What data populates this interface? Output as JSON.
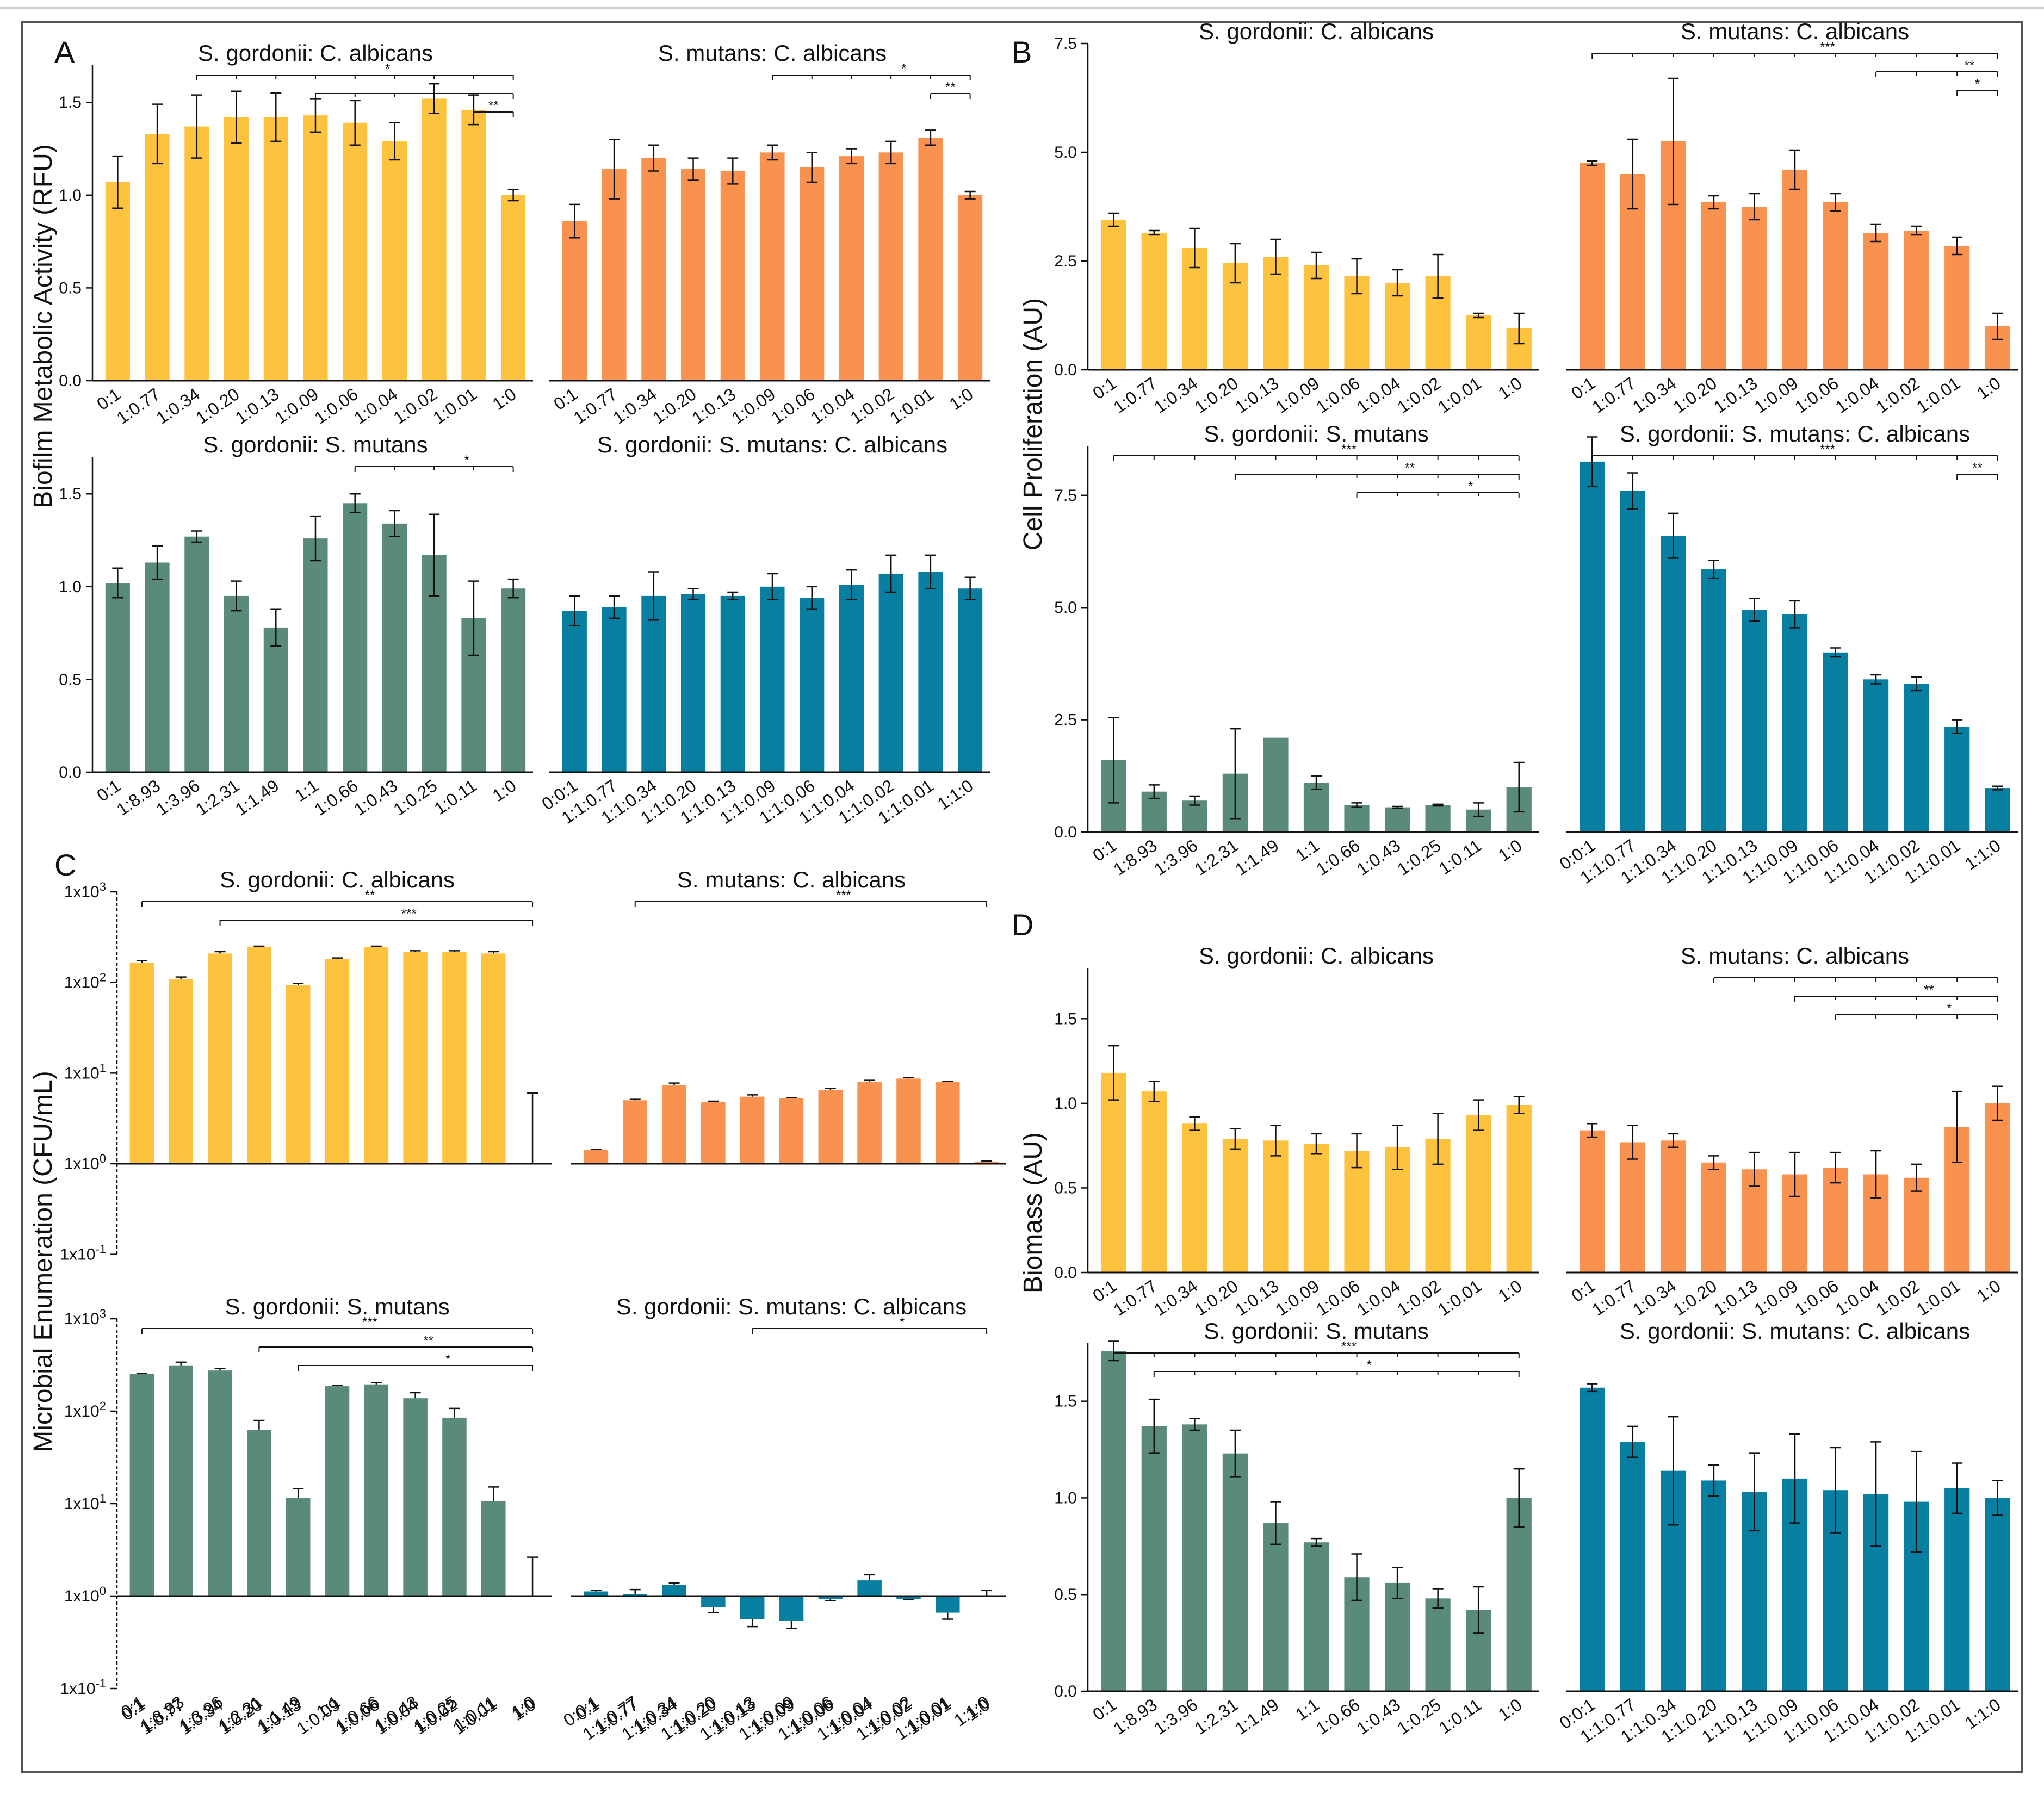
{
  "colors": {
    "yellow": "#FDC33E",
    "orange": "#F8924E",
    "green": "#5A8A7B",
    "blue": "#087FA0",
    "axis": "#111111"
  },
  "y_labels": {
    "A": "Biofilm Metabolic Activity (RFU)",
    "B": "Cell Proliferation (AU)",
    "C": "Microbial Enumeration (CFU/mL)",
    "D": "Biomass (AU)"
  },
  "chart_data": [
    {
      "id": "A1",
      "panel_label": "A",
      "type": "bar",
      "title": "S. gordonii: C. albicans",
      "color": "yellow",
      "ylim": [
        0,
        1.7
      ],
      "yticks": [
        "0.0",
        "0.5",
        "1.0",
        "1.5"
      ],
      "ytick_values": [
        0,
        0.5,
        1.0,
        1.5
      ],
      "categories": [
        "0:1",
        "1:0.77",
        "1:0.34",
        "1:0.20",
        "1:0.13",
        "1:0.09",
        "1:0.06",
        "1:0.04",
        "1:0.02",
        "1:0.01",
        "1:0"
      ],
      "values": [
        1.07,
        1.33,
        1.37,
        1.42,
        1.42,
        1.43,
        1.39,
        1.29,
        1.52,
        1.46,
        1.0
      ],
      "errors": [
        0.14,
        0.16,
        0.17,
        0.14,
        0.13,
        0.09,
        0.12,
        0.1,
        0.08,
        0.08,
        0.03
      ],
      "sig": [
        {
          "from": 2,
          "to": 10,
          "label": "*",
          "ticks": [
            3,
            4,
            5,
            6,
            7,
            8,
            9
          ]
        },
        {
          "from": 5,
          "to": 10,
          "label": "",
          "ticks": [
            6,
            7,
            8,
            9
          ]
        },
        {
          "from": 9,
          "to": 10,
          "label": "**",
          "ticks": []
        }
      ]
    },
    {
      "id": "A2",
      "type": "bar",
      "title": "S. mutans: C. albicans",
      "color": "orange",
      "ylim": [
        0,
        1.7
      ],
      "yticks": [],
      "ytick_values": [],
      "categories": [
        "0:1",
        "1:0.77",
        "1:0.34",
        "1:0.20",
        "1:0.13",
        "1:0.09",
        "1:0.06",
        "1:0.04",
        "1:0.02",
        "1:0.01",
        "1:0"
      ],
      "values": [
        0.86,
        1.14,
        1.2,
        1.14,
        1.13,
        1.23,
        1.15,
        1.21,
        1.23,
        1.31,
        1.0
      ],
      "errors": [
        0.09,
        0.16,
        0.07,
        0.06,
        0.07,
        0.04,
        0.08,
        0.04,
        0.06,
        0.04,
        0.02
      ],
      "sig": [
        {
          "from": 5,
          "to": 10,
          "label": "*",
          "ticks": [
            6,
            7,
            8,
            9
          ]
        },
        {
          "from": 9,
          "to": 10,
          "label": "**",
          "ticks": []
        }
      ]
    },
    {
      "id": "A3",
      "type": "bar",
      "title": "S. gordonii: S. mutans",
      "color": "green",
      "ylim": [
        0,
        1.7
      ],
      "yticks": [
        "0.0",
        "0.5",
        "1.0",
        "1.5"
      ],
      "ytick_values": [
        0,
        0.5,
        1.0,
        1.5
      ],
      "categories": [
        "0:1",
        "1:8.93",
        "1:3.96",
        "1:2.31",
        "1:1.49",
        "1:1",
        "1:0.66",
        "1:0.43",
        "1:0.25",
        "1:0.11",
        "1:0"
      ],
      "values": [
        1.02,
        1.13,
        1.27,
        0.95,
        0.78,
        1.26,
        1.45,
        1.34,
        1.17,
        0.83,
        0.99
      ],
      "errors": [
        0.08,
        0.09,
        0.03,
        0.08,
        0.1,
        0.12,
        0.05,
        0.07,
        0.22,
        0.2,
        0.05
      ],
      "sig": [
        {
          "from": 6,
          "to": 10,
          "label": "*",
          "ticks": [
            7,
            8,
            9
          ]
        }
      ]
    },
    {
      "id": "A4",
      "type": "bar",
      "title": "S. gordonii: S. mutans: C. albicans",
      "color": "blue",
      "ylim": [
        0,
        1.7
      ],
      "yticks": [],
      "ytick_values": [],
      "categories": [
        "0:0:1",
        "1:1:0.77",
        "1:1:0.34",
        "1:1:0.20",
        "1:1:0.13",
        "1:1:0.09",
        "1:1:0.06",
        "1:1:0.04",
        "1:1:0.02",
        "1:1:0.01",
        "1:1:0"
      ],
      "values": [
        0.87,
        0.89,
        0.95,
        0.96,
        0.95,
        1.0,
        0.94,
        1.01,
        1.07,
        1.08,
        0.99
      ],
      "errors": [
        0.08,
        0.06,
        0.13,
        0.03,
        0.02,
        0.07,
        0.06,
        0.08,
        0.1,
        0.09,
        0.06
      ],
      "sig": []
    },
    {
      "id": "B1",
      "panel_label": "B",
      "type": "bar",
      "title": "S. gordonii: C. albicans",
      "color": "yellow",
      "ylim": [
        0,
        7.5
      ],
      "yticks": [
        "0.0",
        "2.5",
        "5.0",
        "7.5"
      ],
      "ytick_values": [
        0,
        2.5,
        5.0,
        7.5
      ],
      "categories": [
        "0:1",
        "1:0.77",
        "1:0.34",
        "1:0.20",
        "1:0.13",
        "1:0.09",
        "1:0.06",
        "1:0.04",
        "1:0.02",
        "1:0.01",
        "1:0"
      ],
      "values": [
        3.45,
        3.15,
        2.8,
        2.45,
        2.6,
        2.4,
        2.15,
        2.0,
        2.15,
        1.25,
        0.95
      ],
      "errors": [
        0.15,
        0.05,
        0.45,
        0.45,
        0.4,
        0.3,
        0.4,
        0.3,
        0.5,
        0.05,
        0.35
      ],
      "sig": []
    },
    {
      "id": "B2",
      "type": "bar",
      "title": "S. mutans: C. albicans",
      "color": "orange",
      "ylim": [
        0,
        7.5
      ],
      "yticks": [],
      "ytick_values": [],
      "categories": [
        "0:1",
        "1:0.77",
        "1:0.34",
        "1:0.20",
        "1:0.13",
        "1:0.09",
        "1:0.06",
        "1:0.04",
        "1:0.02",
        "1:0.01",
        "1:0"
      ],
      "values": [
        4.75,
        4.5,
        5.25,
        3.85,
        3.75,
        4.6,
        3.85,
        3.15,
        3.2,
        2.85,
        1.0
      ],
      "errors": [
        0.05,
        0.8,
        1.45,
        0.15,
        0.3,
        0.45,
        0.2,
        0.2,
        0.1,
        0.2,
        0.3
      ],
      "sig": [
        {
          "from": 0,
          "to": 10,
          "label": "***",
          "ticks": [
            1,
            2,
            3,
            4,
            5,
            6,
            7,
            8,
            9
          ]
        },
        {
          "from": 7,
          "to": 10,
          "label": "**",
          "ticks": [
            8,
            9
          ]
        },
        {
          "from": 9,
          "to": 10,
          "label": "*",
          "ticks": []
        }
      ]
    },
    {
      "id": "B3",
      "type": "bar",
      "title": "S. gordonii: S. mutans",
      "color": "green",
      "ylim": [
        0,
        8.6
      ],
      "yticks": [
        "0.0",
        "2.5",
        "5.0",
        "7.5"
      ],
      "ytick_values": [
        0,
        2.5,
        5.0,
        7.5
      ],
      "categories": [
        "0:1",
        "1:8.93",
        "1:3.96",
        "1:2.31",
        "1:1.49",
        "1:1",
        "1:0.66",
        "1:0.43",
        "1:0.25",
        "1:0.11",
        "1:0"
      ],
      "values": [
        1.6,
        0.9,
        0.7,
        1.3,
        2.1,
        1.1,
        0.6,
        0.55,
        0.6,
        0.5,
        1.0
      ],
      "errors": [
        0.95,
        0.15,
        0.1,
        1.0,
        0.0,
        0.15,
        0.05,
        0.02,
        0.02,
        0.15,
        0.55
      ],
      "sig": [
        {
          "from": 0,
          "to": 10,
          "label": "***",
          "ticks": [
            1,
            2,
            3,
            4,
            5,
            6,
            7,
            8,
            9
          ]
        },
        {
          "from": 3,
          "to": 10,
          "label": "**",
          "ticks": [
            5,
            6,
            7,
            8,
            9
          ]
        },
        {
          "from": 6,
          "to": 10,
          "label": "*",
          "ticks": [
            7,
            8,
            9
          ]
        }
      ]
    },
    {
      "id": "B4",
      "type": "bar",
      "title": "S. gordonii: S. mutans: C. albicans",
      "color": "blue",
      "ylim": [
        0,
        8.6
      ],
      "yticks": [],
      "ytick_values": [],
      "categories": [
        "0:0:1",
        "1:1:0.77",
        "1:1:0.34",
        "1:1:0.20",
        "1:1:0.13",
        "1:1:0.09",
        "1:1:0.06",
        "1:1:0.04",
        "1:1:0.02",
        "1:1:0.01",
        "1:1:0"
      ],
      "values": [
        8.25,
        7.6,
        6.6,
        5.85,
        4.95,
        4.85,
        4.0,
        3.4,
        3.3,
        2.35,
        0.98
      ],
      "errors": [
        0.55,
        0.4,
        0.5,
        0.2,
        0.25,
        0.3,
        0.1,
        0.1,
        0.15,
        0.15,
        0.04
      ],
      "sig": [
        {
          "from": 0,
          "to": 10,
          "label": "***",
          "ticks": [
            1,
            2,
            3,
            4,
            5,
            6,
            7,
            8,
            9
          ]
        },
        {
          "from": 9,
          "to": 10,
          "label": "**",
          "ticks": []
        }
      ]
    },
    {
      "id": "C1",
      "panel_label": "C",
      "type": "bar",
      "scale": "log",
      "title": "S. gordonii: C. albicans",
      "color": "yellow",
      "ylim": [
        -1,
        3
      ],
      "yticks": [
        "1x10-1",
        "1x100",
        "1x101",
        "1x102",
        "1x103"
      ],
      "ytick_values": [
        -1,
        0,
        1,
        2,
        3
      ],
      "categories": [
        "0:1",
        "1:0.77",
        "1:0.34",
        "1:0.20",
        "1:0.13",
        "1:0.09",
        "1:0.06",
        "1:0.04",
        "1:0.02",
        "1:0.01",
        "1:0"
      ],
      "values": [
        2.22,
        2.04,
        2.32,
        2.39,
        1.97,
        2.26,
        2.39,
        2.34,
        2.34,
        2.32,
        0.0
      ],
      "errors": [
        0.02,
        0.02,
        0.02,
        0.01,
        0.02,
        0.01,
        0.01,
        0.01,
        0.01,
        0.02,
        0.78
      ],
      "sig": [
        {
          "from": 0,
          "to": 10,
          "label": "**",
          "ticks": []
        },
        {
          "from": 2,
          "to": 10,
          "label": "***",
          "ticks": []
        }
      ]
    },
    {
      "id": "C2",
      "type": "bar",
      "scale": "log",
      "title": "S. mutans: C. albicans",
      "color": "orange",
      "ylim": [
        -1,
        3
      ],
      "yticks": [],
      "ytick_values": [],
      "categories": [
        "0:1",
        "1:0.77",
        "1:0.34",
        "1:0.20",
        "1:0.13",
        "1:0.09",
        "1:0.06",
        "1:0.04",
        "1:0.02",
        "1:0.01",
        "1:0"
      ],
      "values": [
        0.15,
        0.7,
        0.87,
        0.68,
        0.74,
        0.72,
        0.81,
        0.9,
        0.94,
        0.9,
        0.02
      ],
      "errors": [
        0.01,
        0.01,
        0.02,
        0.01,
        0.02,
        0.01,
        0.02,
        0.02,
        0.01,
        0.01,
        0.01
      ],
      "sig": [
        {
          "from": 1,
          "to": 10,
          "label": "***",
          "ticks": []
        }
      ]
    },
    {
      "id": "C3",
      "type": "bar",
      "scale": "log",
      "title": "S. gordonii: S. mutans",
      "color": "green",
      "ylim": [
        -1,
        3
      ],
      "yticks": [
        "1x10-1",
        "1x100",
        "1x101",
        "1x102",
        "1x103"
      ],
      "ytick_values": [
        -1,
        0,
        1,
        2,
        3
      ],
      "categories": [
        "0:1",
        "1:8.93",
        "1:3.96",
        "1:2.31",
        "1:1.49",
        "1:1",
        "1:0.66",
        "1:0.43",
        "1:0.25",
        "1:0.11",
        "1:0"
      ],
      "values": [
        2.4,
        2.49,
        2.44,
        1.8,
        1.06,
        2.27,
        2.29,
        2.14,
        1.93,
        1.03,
        0.0
      ],
      "errors": [
        0.01,
        0.04,
        0.02,
        0.1,
        0.1,
        0.01,
        0.02,
        0.06,
        0.1,
        0.15,
        0.42
      ],
      "sig": [
        {
          "from": 0,
          "to": 10,
          "label": "***",
          "ticks": []
        },
        {
          "from": 3,
          "to": 10,
          "label": "**",
          "ticks": []
        },
        {
          "from": 4,
          "to": 10,
          "label": "*",
          "ticks": []
        }
      ]
    },
    {
      "id": "C4",
      "type": "bar",
      "scale": "log",
      "title": "S. gordonii: S. mutans: C. albicans",
      "color": "blue",
      "ylim": [
        -1,
        3
      ],
      "yticks": [],
      "ytick_values": [],
      "categories": [
        "0:0:1",
        "1:1:0.77",
        "1:1:0.34",
        "1:1:0.20",
        "1:1:0.13",
        "1:1:0.09",
        "1:1:0.06",
        "1:1:0.04",
        "1:1:0.02",
        "1:1:0.01",
        "1:1:0"
      ],
      "values": [
        0.05,
        0.02,
        0.12,
        -0.12,
        -0.25,
        -0.27,
        -0.03,
        0.17,
        -0.03,
        -0.18,
        0.0
      ],
      "errors": [
        0.01,
        0.05,
        0.02,
        0.06,
        0.08,
        0.08,
        0.02,
        0.06,
        0.01,
        0.07,
        0.06
      ],
      "sig": [
        {
          "from": 4,
          "to": 10,
          "label": "*",
          "ticks": []
        }
      ]
    },
    {
      "id": "D1",
      "panel_label": "D",
      "type": "bar",
      "title": "S. gordonii: C. albicans",
      "color": "yellow",
      "ylim": [
        0,
        1.8
      ],
      "yticks": [
        "0.0",
        "0.5",
        "1.0",
        "1.5"
      ],
      "ytick_values": [
        0,
        0.5,
        1.0,
        1.5
      ],
      "categories": [
        "0:1",
        "1:0.77",
        "1:0.34",
        "1:0.20",
        "1:0.13",
        "1:0.09",
        "1:0.06",
        "1:0.04",
        "1:0.02",
        "1:0.01",
        "1:0"
      ],
      "values": [
        1.18,
        1.07,
        0.88,
        0.79,
        0.78,
        0.76,
        0.72,
        0.74,
        0.79,
        0.93,
        0.99
      ],
      "errors": [
        0.16,
        0.06,
        0.04,
        0.06,
        0.09,
        0.06,
        0.1,
        0.13,
        0.15,
        0.09,
        0.05
      ],
      "sig": []
    },
    {
      "id": "D2",
      "type": "bar",
      "title": "S. mutans: C. albicans",
      "color": "orange",
      "ylim": [
        0,
        1.8
      ],
      "yticks": [],
      "ytick_values": [],
      "categories": [
        "0:1",
        "1:0.77",
        "1:0.34",
        "1:0.20",
        "1:0.13",
        "1:0.09",
        "1:0.06",
        "1:0.04",
        "1:0.02",
        "1:0.01",
        "1:0"
      ],
      "values": [
        0.84,
        0.77,
        0.78,
        0.65,
        0.61,
        0.58,
        0.62,
        0.58,
        0.56,
        0.86,
        1.0
      ],
      "errors": [
        0.04,
        0.1,
        0.04,
        0.04,
        0.1,
        0.13,
        0.09,
        0.14,
        0.08,
        0.21,
        0.1
      ],
      "sig": [
        {
          "from": 3,
          "to": 10,
          "label": "",
          "ticks": [
            4,
            5,
            6,
            7,
            8,
            9
          ]
        },
        {
          "from": 5,
          "to": 10,
          "label": "**",
          "ticks": [
            6,
            7,
            8,
            9
          ]
        },
        {
          "from": 6,
          "to": 10,
          "label": "*",
          "ticks": [
            7,
            8,
            9
          ]
        }
      ]
    },
    {
      "id": "D3",
      "type": "bar",
      "title": "S. gordonii: S. mutans",
      "color": "green",
      "ylim": [
        0,
        1.8
      ],
      "yticks": [
        "0.0",
        "0.5",
        "1.0",
        "1.5"
      ],
      "ytick_values": [
        0,
        0.5,
        1.0,
        1.5
      ],
      "categories": [
        "0:1",
        "1:8.93",
        "1:3.96",
        "1:2.31",
        "1:1.49",
        "1:1",
        "1:0.66",
        "1:0.43",
        "1:0.25",
        "1:0.11",
        "1:0"
      ],
      "values": [
        1.76,
        1.37,
        1.38,
        1.23,
        0.87,
        0.77,
        0.59,
        0.56,
        0.48,
        0.42,
        1.0
      ],
      "errors": [
        0.05,
        0.14,
        0.03,
        0.12,
        0.11,
        0.02,
        0.12,
        0.08,
        0.05,
        0.12,
        0.15
      ],
      "sig": [
        {
          "from": 0,
          "to": 10,
          "label": "***",
          "ticks": [
            1,
            2,
            3,
            4,
            5,
            6,
            7,
            8,
            9
          ]
        },
        {
          "from": 1,
          "to": 10,
          "label": "*",
          "ticks": [
            2,
            3,
            4,
            5,
            6,
            7,
            8,
            9
          ]
        }
      ]
    },
    {
      "id": "D4",
      "type": "bar",
      "title": "S. gordonii: S. mutans: C. albicans",
      "color": "blue",
      "ylim": [
        0,
        1.8
      ],
      "yticks": [],
      "ytick_values": [],
      "categories": [
        "0:0:1",
        "1:1:0.77",
        "1:1:0.34",
        "1:1:0.20",
        "1:1:0.13",
        "1:1:0.09",
        "1:1:0.06",
        "1:1:0.04",
        "1:1:0.02",
        "1:1:0.01",
        "1:1:0"
      ],
      "values": [
        1.57,
        1.29,
        1.14,
        1.09,
        1.03,
        1.1,
        1.04,
        1.02,
        0.98,
        1.05,
        1.0
      ],
      "errors": [
        0.02,
        0.08,
        0.28,
        0.08,
        0.2,
        0.23,
        0.22,
        0.27,
        0.26,
        0.13,
        0.09
      ],
      "sig": []
    }
  ]
}
